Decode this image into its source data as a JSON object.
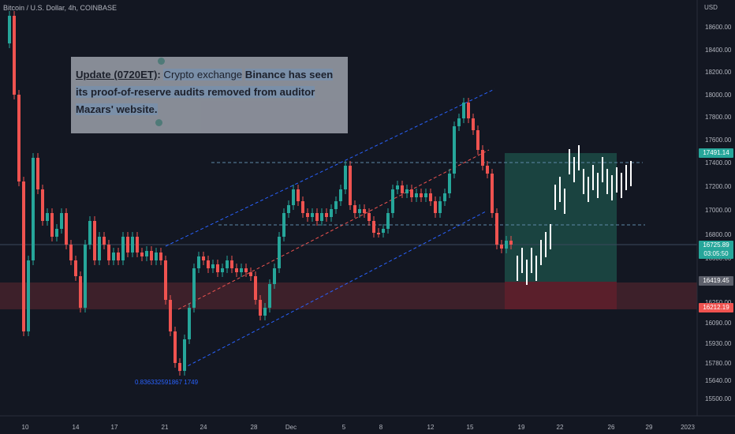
{
  "header": {
    "title": "Bitcoin / U.S. Dollar, 4h, COINBASE"
  },
  "annotation": {
    "label": "Update (0720ET)",
    "sep": ":",
    "plain": "Crypto exchange",
    "bold1": "Binance has seen",
    "line2": "its proof-of-reserve audits removed from auditor",
    "line3": "Mazars' website."
  },
  "fib_label": "0.836332591867 1749",
  "price_axis": {
    "currency": "USD",
    "labels": [
      "18600.00",
      "18400.00",
      "18200.00",
      "18000.00",
      "17800.00",
      "17600.00",
      "17400.00",
      "17200.00",
      "17000.00",
      "16800.00",
      "16600.00",
      "16250.00",
      "16090.00",
      "15930.00",
      "15780.00",
      "15640.00",
      "15500.00"
    ]
  },
  "time_axis": {
    "labels": [
      "10",
      "14",
      "17",
      "21",
      "24",
      "28",
      "Dec",
      "5",
      "8",
      "12",
      "15",
      "19",
      "22",
      "26",
      "29",
      "2023"
    ]
  },
  "price_tags": {
    "target": "17491.14",
    "current": "16725.89",
    "countdown": "03:05:50",
    "entry": "16419.45",
    "stop": "16212.19"
  },
  "colors": {
    "background": "#131722",
    "up": "#26a69a",
    "down": "#ef5350",
    "projection": "#ffffff",
    "channel": "#2962ff",
    "profit_zone": "#1b4a45",
    "loss_zone": "#4a1c26"
  }
}
